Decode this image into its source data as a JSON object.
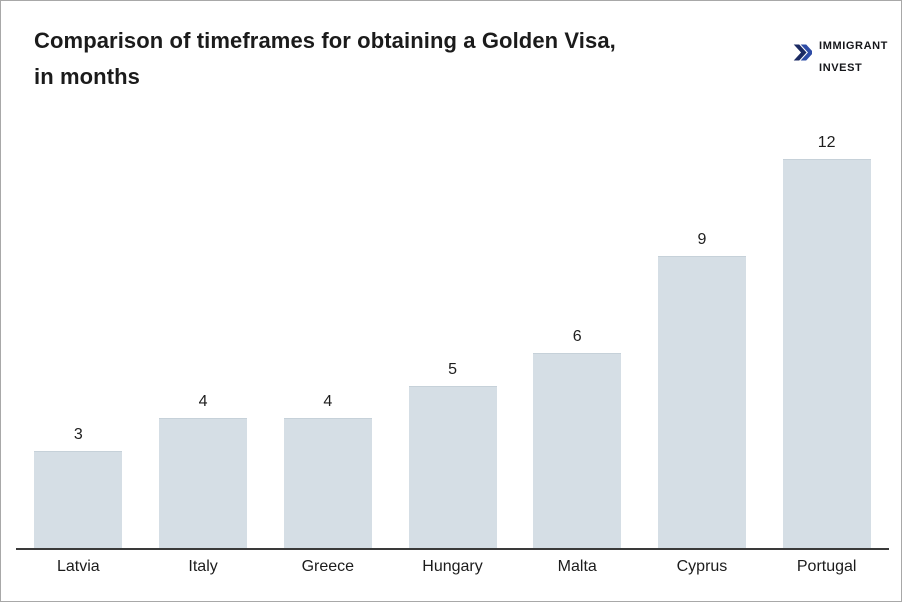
{
  "page": {
    "background": "#ffffff",
    "border_color": "#a8a8a8"
  },
  "header": {
    "title_line1": "Comparison of timeframes for obtaining a Golden Visa,",
    "title_line2": "in months",
    "logo": {
      "line1": "IMMIGRANT",
      "line2": "INVEST",
      "icon": "double-chevron-right-icon",
      "icon_color_dark": "#1b2a63",
      "icon_color_light": "#2e4ca6",
      "text_color": "#15161a"
    }
  },
  "chart_data": {
    "type": "bar",
    "title": "Comparison of timeframes for obtaining a Golden Visa, in months",
    "categories": [
      "Latvia",
      "Italy",
      "Greece",
      "Hungary",
      "Malta",
      "Cyprus",
      "Portugal"
    ],
    "values": [
      3,
      4,
      4,
      5,
      6,
      9,
      12
    ],
    "value_labels": [
      "3",
      "4",
      "4",
      "5",
      "6",
      "9",
      "12"
    ],
    "xlabel": "",
    "ylabel": "",
    "ylim": [
      0,
      12
    ],
    "grid": false,
    "legend": "none",
    "bar_color": "#d5dee5",
    "axis_color": "#3a3a3a",
    "label_color": "#1c1c1c"
  }
}
